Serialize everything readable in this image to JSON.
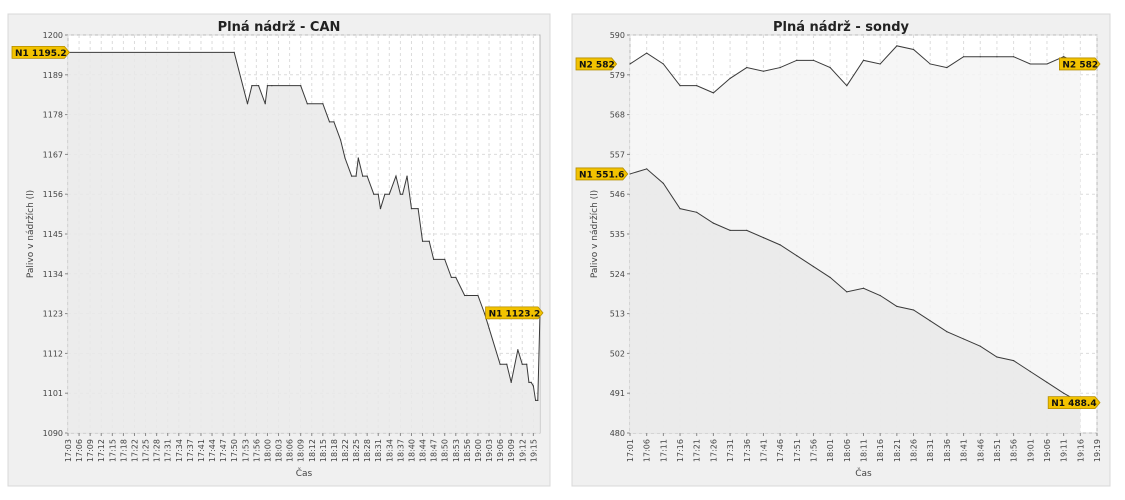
{
  "colors": {
    "frame_bg": "#f0f0f0",
    "plot_bg": "#ffffff",
    "area_fill": "#e9e9e9",
    "area_fill_upper": "#f4f4f4",
    "line": "#3a3a3a",
    "grid": "#dcdcdc",
    "tag_fill": "#f2c200",
    "tag_stroke": "#b58e00"
  },
  "chart_data": [
    {
      "type": "area",
      "title": "Plná nádrž - CAN",
      "xlabel": "Čas",
      "ylabel": "Palivo v nádržích (l)",
      "ylim": [
        1090,
        1200
      ],
      "yticks": [
        "1090",
        "1101",
        "1112",
        "1123",
        "1134",
        "1145",
        "1156",
        "1167",
        "1178",
        "1189",
        "1200"
      ],
      "categories": [
        "17:03",
        "17:06",
        "17:09",
        "17:12",
        "17:15",
        "17:18",
        "17:22",
        "17:25",
        "17:28",
        "17:31",
        "17:34",
        "17:37",
        "17:41",
        "17:44",
        "17:47",
        "17:50",
        "17:53",
        "17:56",
        "18:00",
        "18:03",
        "18:06",
        "18:09",
        "18:12",
        "18:15",
        "18:18",
        "18:22",
        "18:25",
        "18:28",
        "18:31",
        "18:34",
        "18:37",
        "18:40",
        "18:44",
        "18:47",
        "18:50",
        "18:53",
        "18:56",
        "19:00",
        "19:03",
        "19:06",
        "19:09",
        "19:12",
        "19:15"
      ],
      "series": [
        {
          "name": "",
          "x": [
            0,
            15.0,
            16.2,
            16.6,
            17.2,
            17.8,
            18.0,
            18.4,
            21.0,
            21.6,
            23.0,
            23.6,
            24.0,
            24.6,
            25.0,
            25.6,
            26.0,
            26.2,
            26.6,
            27.0,
            27.6,
            28.0,
            28.2,
            28.6,
            29.0,
            29.6,
            30.0,
            30.2,
            30.6,
            31.0,
            31.6,
            32.0,
            32.6,
            33.0,
            34.0,
            34.6,
            35.0,
            35.8,
            36.0,
            37.0,
            37.6,
            38.0,
            39.0,
            39.6,
            40.0,
            40.6,
            41.0,
            41.4,
            41.6,
            41.8,
            42.0,
            42.2,
            42.4,
            42.6
          ],
          "y": [
            1195.2,
            1195.2,
            1181,
            1186,
            1186,
            1181,
            1186,
            1186,
            1186,
            1181,
            1181,
            1176,
            1176,
            1171,
            1166,
            1161,
            1161,
            1166,
            1161,
            1161,
            1156,
            1156,
            1152,
            1156,
            1156,
            1161,
            1156,
            1156,
            1161,
            1152,
            1152,
            1143,
            1143,
            1138,
            1138,
            1133,
            1133,
            1128,
            1128,
            1128,
            1123,
            1119,
            1109,
            1109,
            1104,
            1113,
            1109,
            1109,
            1104,
            1104,
            1103,
            1099,
            1099,
            1123.2
          ]
        }
      ],
      "markers": [
        {
          "label": "N1 1195.2",
          "value": 1195.2,
          "side": "left"
        },
        {
          "label": "N1 1123.2",
          "value": 1123.2,
          "side": "right"
        }
      ]
    },
    {
      "type": "area",
      "title": "Plná nádrž - sondy",
      "xlabel": "Čas",
      "ylabel": "Palivo v nádržích (l)",
      "ylim": [
        480,
        590
      ],
      "yticks": [
        "480",
        "491",
        "502",
        "513",
        "524",
        "535",
        "546",
        "557",
        "568",
        "579",
        "590"
      ],
      "categories": [
        "17:01",
        "17:06",
        "17:11",
        "17:16",
        "17:21",
        "17:26",
        "17:31",
        "17:36",
        "17:41",
        "17:46",
        "17:51",
        "17:56",
        "18:01",
        "18:06",
        "18:11",
        "18:16",
        "18:21",
        "18:26",
        "18:31",
        "18:36",
        "18:41",
        "18:46",
        "18:51",
        "18:56",
        "19:01",
        "19:06",
        "19:11",
        "19:16",
        "19:19"
      ],
      "series": [
        {
          "name": "N2",
          "x": [
            0,
            1,
            2,
            3,
            4,
            5,
            6,
            7,
            8,
            9,
            10,
            11,
            12,
            13,
            14,
            15,
            16,
            17,
            18,
            19,
            20,
            21,
            22,
            23,
            24,
            25,
            26,
            27
          ],
          "y": [
            582,
            585,
            582,
            576,
            576,
            574,
            578,
            581,
            580,
            581,
            583,
            583,
            581,
            576,
            583,
            582,
            587,
            586,
            582,
            581,
            584,
            584,
            584,
            584,
            582,
            582,
            584,
            582
          ]
        },
        {
          "name": "N1",
          "x": [
            0,
            1,
            2,
            3,
            4,
            5,
            6,
            7,
            8,
            9,
            10,
            11,
            12,
            13,
            14,
            15,
            16,
            17,
            18,
            19,
            20,
            21,
            22,
            23,
            24,
            25,
            26,
            27
          ],
          "y": [
            551.6,
            553,
            549,
            542,
            541,
            538,
            536,
            536,
            534,
            532,
            529,
            526,
            523,
            519,
            520,
            518,
            515,
            514,
            511,
            508,
            506,
            504,
            501,
            500,
            497,
            494,
            491,
            488.4
          ]
        }
      ],
      "markers": [
        {
          "label": "N2 582",
          "value": 582,
          "side": "left"
        },
        {
          "label": "N2 582",
          "value": 582,
          "side": "right"
        },
        {
          "label": "N1 551.6",
          "value": 551.6,
          "side": "left"
        },
        {
          "label": "N1 488.4",
          "value": 488.4,
          "side": "right"
        }
      ]
    }
  ]
}
